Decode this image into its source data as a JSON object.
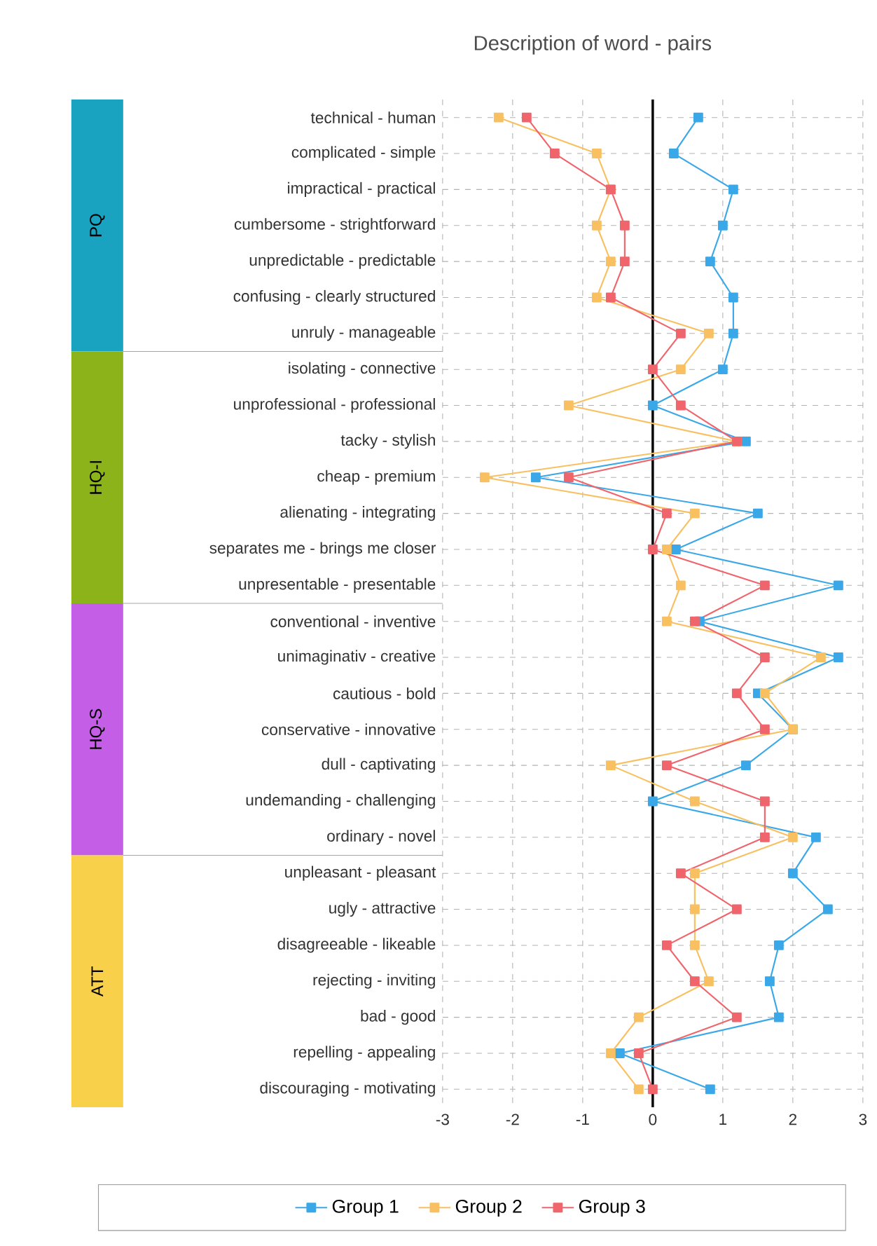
{
  "chart_data": {
    "type": "line",
    "title": "Description of word - pairs",
    "orientation": "horizontal",
    "categories": [
      "technical - human",
      "complicated - simple",
      "impractical - practical",
      "cumbersome - strightforward",
      "unpredictable - predictable",
      "confusing - clearly structured",
      "unruly - manageable",
      "isolating - connective",
      "unprofessional - professional",
      "tacky - stylish",
      "cheap - premium",
      "alienating - integrating",
      "separates me - brings me closer",
      "unpresentable - presentable",
      "conventional - inventive",
      "unimaginativ - creative",
      "cautious - bold",
      "conservative - innovative",
      "dull - captivating",
      "undemanding - challenging",
      "ordinary - novel",
      "unpleasant - pleasant",
      "ugly - attractive",
      "disagreeable - likeable",
      "rejecting - inviting",
      "bad - good",
      "repelling - appealing",
      "discouraging - motivating"
    ],
    "series": [
      {
        "name": "Group 1",
        "color": "#3aa8e8",
        "values": [
          0.65,
          0.3,
          1.15,
          1.0,
          0.82,
          1.15,
          1.15,
          1.0,
          0,
          1.33,
          -1.67,
          1.5,
          0.33,
          2.65,
          0.67,
          2.65,
          1.5,
          2.0,
          1.33,
          0,
          2.33,
          2.0,
          2.5,
          1.8,
          1.67,
          1.8,
          -0.47,
          0.82
        ]
      },
      {
        "name": "Group 2",
        "color": "#f8c060",
        "values": [
          -2.2,
          -0.8,
          -0.6,
          -0.8,
          -0.6,
          -0.8,
          0.8,
          0.4,
          -1.2,
          1.2,
          -2.4,
          0.6,
          0.2,
          0.4,
          0.2,
          2.4,
          1.6,
          2.0,
          -0.6,
          0.6,
          2.0,
          0.6,
          0.6,
          0.6,
          0.8,
          -0.2,
          -0.6,
          -0.2
        ]
      },
      {
        "name": "Group 3",
        "color": "#f0646c",
        "values": [
          -1.8,
          -1.4,
          -0.6,
          -0.4,
          -0.4,
          -0.6,
          0.4,
          0,
          0.4,
          1.2,
          -1.2,
          0.2,
          0,
          1.6,
          0.6,
          1.6,
          1.2,
          1.6,
          0.2,
          1.6,
          1.6,
          0.4,
          1.2,
          0.2,
          0.6,
          1.2,
          -0.2,
          0
        ]
      }
    ],
    "xlim": [
      -3,
      3
    ],
    "xticks": [
      -3,
      -2,
      -1,
      0,
      1,
      2,
      3
    ],
    "annotations": [
      "PQ",
      "HQ-I",
      "HQ-S",
      "ATT"
    ],
    "ref_lines": [
      {
        "axis": "x",
        "value": 0,
        "color": "#000000"
      }
    ],
    "grid": true,
    "legend": "bottom",
    "marker": "square",
    "line_style": "solid"
  }
}
